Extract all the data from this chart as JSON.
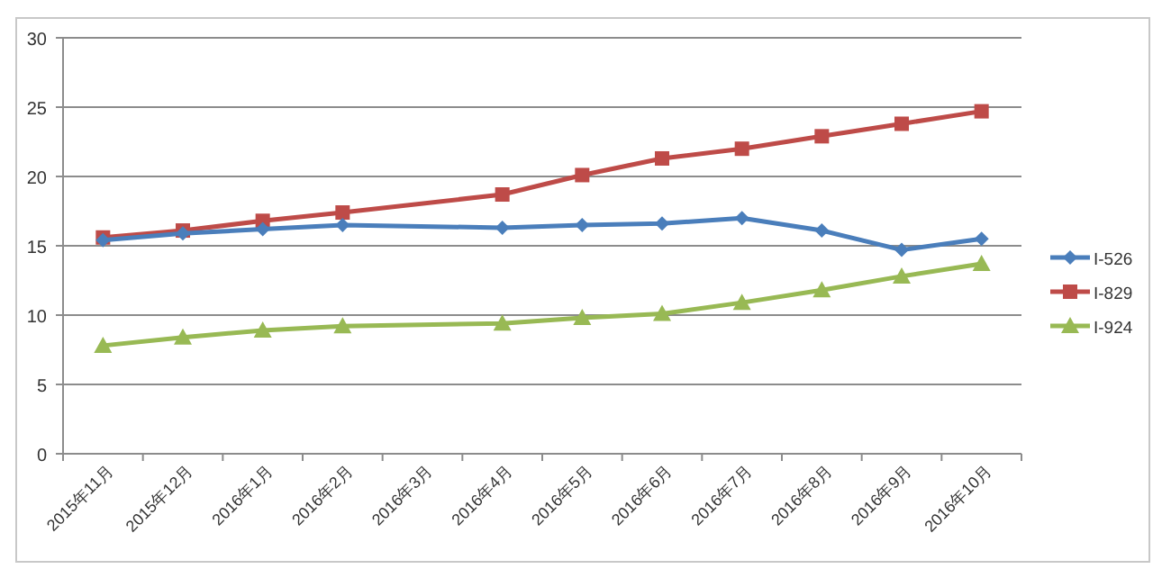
{
  "chart_data": {
    "type": "line",
    "categories": [
      "2015年11月",
      "2015年12月",
      "2016年1月",
      "2016年2月",
      "2016年3月",
      "2016年4月",
      "2016年5月",
      "2016年6月",
      "2016年7月",
      "2016年8月",
      "2016年9月",
      "2016年10月"
    ],
    "series": [
      {
        "name": "I-526",
        "color": "#4a7ebb",
        "marker": "diamond",
        "values": [
          15.4,
          15.9,
          16.2,
          16.5,
          null,
          16.3,
          16.5,
          16.6,
          17.0,
          16.1,
          14.7,
          15.5
        ]
      },
      {
        "name": "I-829",
        "color": "#be4b48",
        "marker": "square",
        "values": [
          15.6,
          16.1,
          16.8,
          17.4,
          null,
          18.7,
          20.1,
          21.3,
          22.0,
          22.9,
          23.8,
          24.7
        ]
      },
      {
        "name": "I-924",
        "color": "#98b954",
        "marker": "triangle",
        "values": [
          7.8,
          8.4,
          8.9,
          9.2,
          null,
          9.4,
          9.8,
          10.1,
          10.9,
          11.8,
          12.8,
          13.7
        ]
      }
    ],
    "ylim": [
      0,
      30
    ],
    "yticks": [
      0,
      5,
      10,
      15,
      20,
      25,
      30
    ],
    "grid": "y",
    "legend": "right"
  }
}
